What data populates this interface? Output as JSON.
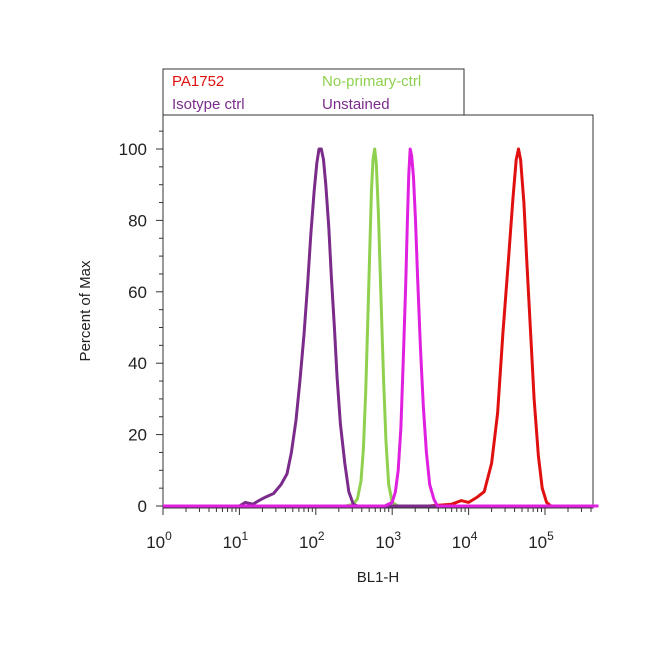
{
  "chart_data": {
    "type": "line",
    "xlabel": "BL1-H",
    "ylabel": "Percent of Max",
    "x_scale": "log",
    "xlim": [
      1,
      500000
    ],
    "ylim": [
      0,
      110
    ],
    "x_ticks": [
      {
        "value": 1,
        "base": "10",
        "exp": "0"
      },
      {
        "value": 10,
        "base": "10",
        "exp": "1"
      },
      {
        "value": 100,
        "base": "10",
        "exp": "2"
      },
      {
        "value": 1000,
        "base": "10",
        "exp": "3"
      },
      {
        "value": 10000,
        "base": "10",
        "exp": "4"
      },
      {
        "value": 100000,
        "base": "10",
        "exp": "5"
      }
    ],
    "y_ticks": [
      0,
      20,
      40,
      60,
      80,
      100
    ],
    "grid": false,
    "legend_position": "top",
    "series": [
      {
        "name": "PA1752",
        "color": "#e01010",
        "points": [
          [
            1,
            0
          ],
          [
            3000,
            0
          ],
          [
            6000,
            0.5
          ],
          [
            8000,
            1.5
          ],
          [
            10000,
            1
          ],
          [
            13000,
            2.5
          ],
          [
            16000,
            4
          ],
          [
            20000,
            12
          ],
          [
            24000,
            26
          ],
          [
            28000,
            48
          ],
          [
            33000,
            68
          ],
          [
            38000,
            86
          ],
          [
            42000,
            97
          ],
          [
            45000,
            100
          ],
          [
            48000,
            97
          ],
          [
            53000,
            85
          ],
          [
            58000,
            68
          ],
          [
            65000,
            48
          ],
          [
            72000,
            30
          ],
          [
            82000,
            14
          ],
          [
            92000,
            5
          ],
          [
            105000,
            1
          ],
          [
            120000,
            0
          ],
          [
            500000,
            0
          ]
        ]
      },
      {
        "name": "No-primary-ctrl",
        "color": "#8fd14f",
        "points": [
          [
            1,
            0
          ],
          [
            250,
            0
          ],
          [
            310,
            0.5
          ],
          [
            350,
            2
          ],
          [
            390,
            7
          ],
          [
            420,
            16
          ],
          [
            450,
            32
          ],
          [
            480,
            52
          ],
          [
            510,
            73
          ],
          [
            535,
            88
          ],
          [
            560,
            97
          ],
          [
            590,
            100
          ],
          [
            620,
            96
          ],
          [
            660,
            82
          ],
          [
            710,
            60
          ],
          [
            770,
            36
          ],
          [
            830,
            18
          ],
          [
            900,
            6
          ],
          [
            1000,
            1
          ],
          [
            1200,
            0
          ],
          [
            500000,
            0
          ]
        ]
      },
      {
        "name": "Isotype ctrl",
        "color": "#7b2c8b",
        "points": [
          [
            1,
            0
          ],
          [
            10,
            0
          ],
          [
            12,
            1
          ],
          [
            15,
            0.5
          ],
          [
            18,
            1.5
          ],
          [
            22,
            2.5
          ],
          [
            28,
            3.5
          ],
          [
            35,
            6
          ],
          [
            42,
            9
          ],
          [
            48,
            15
          ],
          [
            55,
            24
          ],
          [
            62,
            35
          ],
          [
            70,
            48
          ],
          [
            78,
            62
          ],
          [
            86,
            76
          ],
          [
            95,
            88
          ],
          [
            103,
            96
          ],
          [
            110,
            100
          ],
          [
            118,
            100
          ],
          [
            126,
            97
          ],
          [
            135,
            90
          ],
          [
            148,
            78
          ],
          [
            160,
            64
          ],
          [
            175,
            50
          ],
          [
            190,
            36
          ],
          [
            210,
            23
          ],
          [
            240,
            12
          ],
          [
            270,
            4
          ],
          [
            310,
            0.5
          ],
          [
            350,
            0
          ],
          [
            500000,
            0
          ]
        ]
      },
      {
        "name": "Unstained",
        "color": "#e020e0",
        "points": [
          [
            1,
            0
          ],
          [
            800,
            0
          ],
          [
            1000,
            1
          ],
          [
            1100,
            4
          ],
          [
            1200,
            10
          ],
          [
            1300,
            22
          ],
          [
            1400,
            42
          ],
          [
            1500,
            62
          ],
          [
            1580,
            80
          ],
          [
            1650,
            93
          ],
          [
            1720,
            100
          ],
          [
            1800,
            98
          ],
          [
            1900,
            92
          ],
          [
            2020,
            80
          ],
          [
            2150,
            64
          ],
          [
            2350,
            44
          ],
          [
            2550,
            28
          ],
          [
            2800,
            15
          ],
          [
            3100,
            6
          ],
          [
            3500,
            2
          ],
          [
            3900,
            0
          ],
          [
            500000,
            0
          ]
        ]
      }
    ]
  },
  "legend": {
    "entries": [
      {
        "label": "PA1752",
        "color": "#e01010"
      },
      {
        "label": "No-primary-ctrl",
        "color": "#8fd14f"
      },
      {
        "label": "Isotype ctrl",
        "color": "#7b2c8b"
      },
      {
        "label": "Unstained",
        "color": "#e020e0"
      }
    ]
  }
}
